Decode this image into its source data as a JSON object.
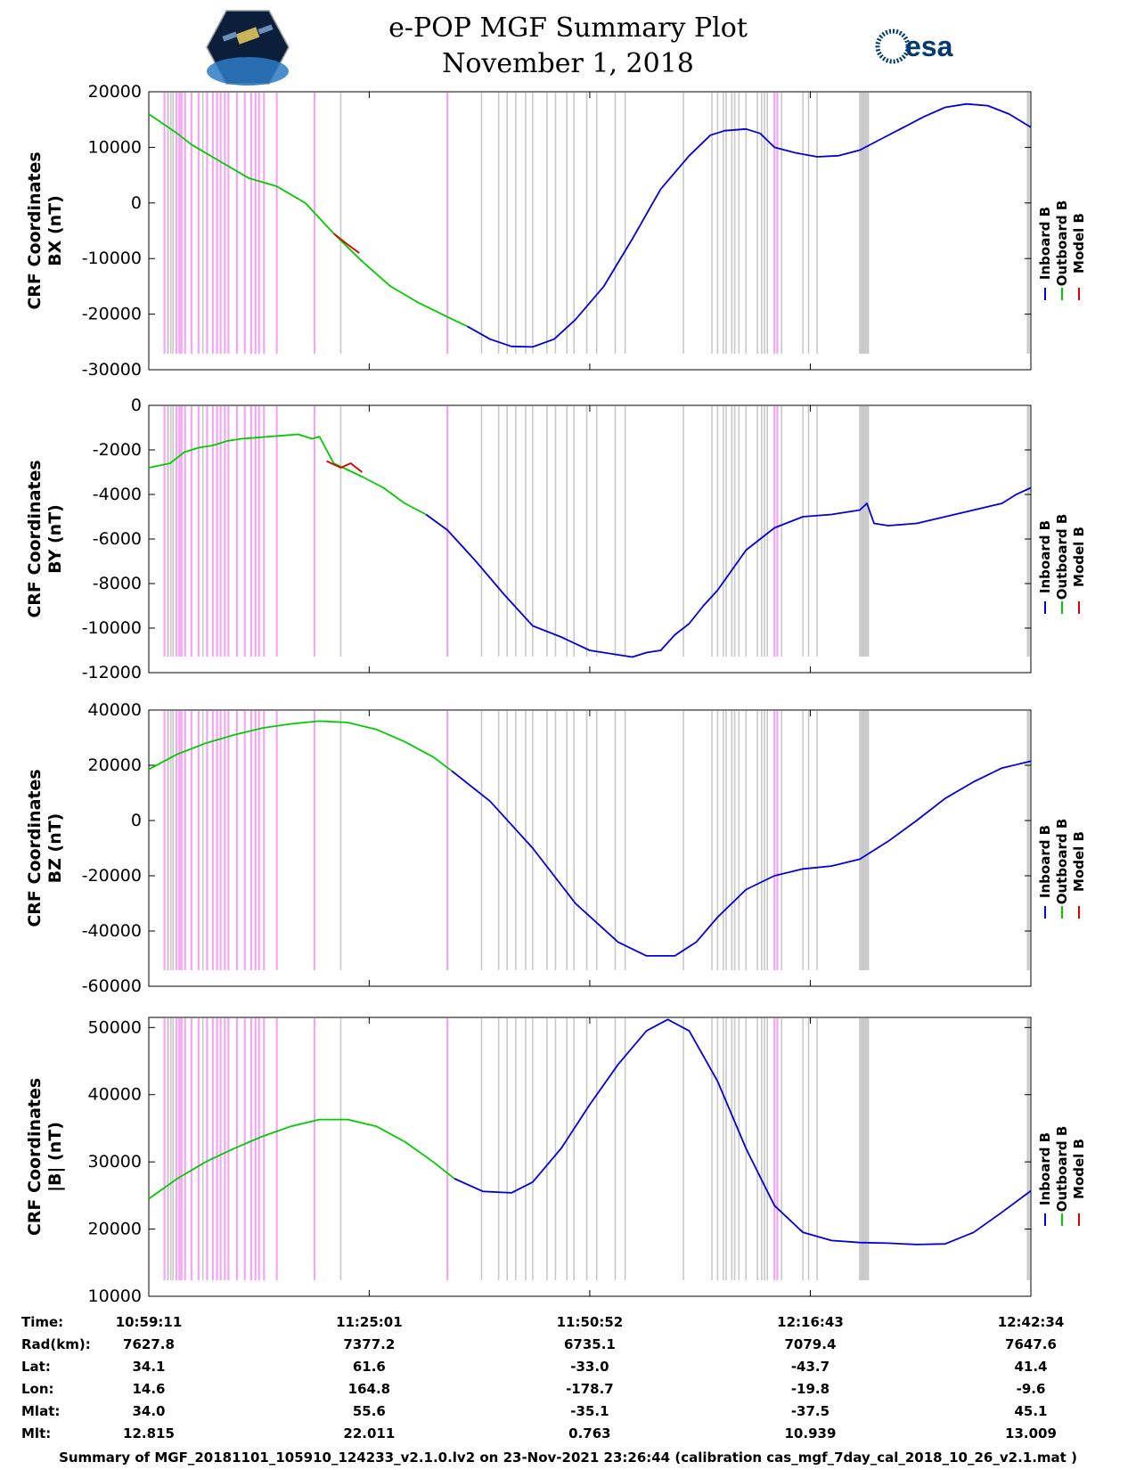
{
  "header": {
    "title_line1": "e-POP MGF Summary Plot",
    "title_line2": "November 1, 2018",
    "logo_left_name": "cassiope-logo",
    "logo_right_text": "esa"
  },
  "legend": {
    "labels": [
      "Inboard B",
      "Outboard B",
      "Model B"
    ],
    "colors": [
      "#0000dd",
      "#00cc00",
      "#dd0000"
    ]
  },
  "colors": {
    "inboard": "#0000dd",
    "outboard": "#00cc00",
    "model": "#dd0000",
    "pink_band": "#f4a6f4",
    "gray_band": "#c8c8c8"
  },
  "chart_data": [
    {
      "type": "line",
      "name": "bx",
      "ylabel_line1": "CRF Coordinates",
      "ylabel_line2": "BX (nT)",
      "ylim": [
        -30000,
        20000
      ],
      "yticks": [
        20000,
        10000,
        0,
        -10000,
        -20000,
        -30000
      ],
      "xlim": [
        0,
        6203
      ],
      "series": [
        {
          "name": "Outboard B",
          "x": [
            0,
            200,
            300,
            500,
            700,
            900,
            1100,
            1300,
            1500,
            1700,
            1900,
            2100,
            2240
          ],
          "y": [
            16000,
            12500,
            10500,
            7500,
            4500,
            3000,
            0,
            -5500,
            -10500,
            -15000,
            -18000,
            -20500,
            -22200
          ]
        },
        {
          "name": "Inboard B",
          "x": [
            2240,
            2400,
            2550,
            2700,
            2850,
            3000,
            3200,
            3400,
            3600,
            3800,
            3950,
            4050,
            4200,
            4300,
            4400,
            4550,
            4700,
            4850,
            5000,
            5150,
            5300,
            5450,
            5600,
            5750,
            5900,
            6050,
            6203
          ],
          "y": [
            -22200,
            -24500,
            -25800,
            -25900,
            -24500,
            -21000,
            -15000,
            -6500,
            2500,
            8500,
            12200,
            13000,
            13300,
            12500,
            10000,
            9000,
            8300,
            8500,
            9500,
            11500,
            13500,
            15500,
            17200,
            17800,
            17500,
            16000,
            13600
          ]
        },
        {
          "name": "Model B",
          "x": [
            1300,
            1400,
            1480
          ],
          "y": [
            -5500,
            -7500,
            -9000
          ]
        }
      ]
    },
    {
      "type": "line",
      "name": "by",
      "ylabel_line1": "CRF Coordinates",
      "ylabel_line2": "BY (nT)",
      "ylim": [
        -12000,
        0
      ],
      "yticks": [
        0,
        -2000,
        -4000,
        -6000,
        -8000,
        -10000,
        -12000
      ],
      "xlim": [
        0,
        6203
      ],
      "series": [
        {
          "name": "Outboard B",
          "x": [
            0,
            150,
            250,
            350,
            450,
            550,
            650,
            750,
            850,
            950,
            1050,
            1150,
            1200,
            1300,
            1400,
            1500,
            1650,
            1800,
            1950
          ],
          "y": [
            -2800,
            -2600,
            -2100,
            -1900,
            -1800,
            -1600,
            -1500,
            -1450,
            -1400,
            -1350,
            -1300,
            -1500,
            -1400,
            -2600,
            -2900,
            -3200,
            -3700,
            -4400,
            -4900
          ]
        },
        {
          "name": "Inboard B",
          "x": [
            1950,
            2100,
            2300,
            2500,
            2700,
            2900,
            3100,
            3300,
            3400,
            3500,
            3600,
            3700,
            3800,
            3900,
            4000,
            4200,
            4400,
            4600,
            4800,
            5000,
            5050,
            5100,
            5200,
            5400,
            5600,
            5800,
            6000,
            6100,
            6203
          ],
          "y": [
            -4900,
            -5600,
            -7000,
            -8500,
            -9900,
            -10400,
            -11000,
            -11200,
            -11300,
            -11100,
            -11000,
            -10300,
            -9800,
            -9000,
            -8300,
            -6500,
            -5500,
            -5000,
            -4900,
            -4700,
            -4400,
            -5300,
            -5400,
            -5300,
            -5000,
            -4700,
            -4400,
            -4000,
            -3700
          ]
        },
        {
          "name": "Model B",
          "x": [
            1250,
            1350,
            1420,
            1500
          ],
          "y": [
            -2500,
            -2800,
            -2600,
            -3000
          ]
        }
      ]
    },
    {
      "type": "line",
      "name": "bz",
      "ylabel_line1": "CRF Coordinates",
      "ylabel_line2": "BZ (nT)",
      "ylim": [
        -60000,
        40000
      ],
      "yticks": [
        40000,
        20000,
        0,
        -20000,
        -40000,
        -60000
      ],
      "xlim": [
        0,
        6203
      ],
      "series": [
        {
          "name": "Outboard B",
          "x": [
            0,
            200,
            400,
            600,
            800,
            1000,
            1200,
            1400,
            1600,
            1800,
            2000,
            2130
          ],
          "y": [
            18500,
            24000,
            28000,
            31000,
            33500,
            35000,
            36000,
            35500,
            33000,
            28500,
            23000,
            18000
          ]
        },
        {
          "name": "Inboard B",
          "x": [
            2130,
            2400,
            2700,
            3000,
            3300,
            3500,
            3700,
            3850,
            4000,
            4200,
            4400,
            4600,
            4800,
            5000,
            5200,
            5400,
            5600,
            5800,
            6000,
            6203
          ],
          "y": [
            18000,
            7000,
            -10000,
            -30000,
            -44000,
            -49000,
            -49000,
            -44000,
            -35000,
            -25000,
            -20000,
            -17500,
            -16500,
            -14000,
            -7500,
            0,
            8000,
            14000,
            19000,
            21500
          ]
        }
      ]
    },
    {
      "type": "line",
      "name": "bmag",
      "ylabel_line1": "CRF Coordinates",
      "ylabel_line2": "|B| (nT)",
      "ylim": [
        10000,
        51500
      ],
      "yticks": [
        50000,
        40000,
        30000,
        20000,
        10000
      ],
      "xlim": [
        0,
        6203
      ],
      "series": [
        {
          "name": "Outboard B",
          "x": [
            0,
            200,
            400,
            600,
            800,
            1000,
            1200,
            1400,
            1600,
            1800,
            2000,
            2150
          ],
          "y": [
            24500,
            27500,
            30000,
            32000,
            33800,
            35300,
            36300,
            36300,
            35300,
            33000,
            30000,
            27500
          ]
        },
        {
          "name": "Inboard B",
          "x": [
            2150,
            2350,
            2550,
            2700,
            2900,
            3100,
            3300,
            3500,
            3650,
            3800,
            4000,
            4200,
            4400,
            4600,
            4800,
            5000,
            5200,
            5400,
            5600,
            5800,
            6000,
            6203
          ],
          "y": [
            27500,
            25600,
            25400,
            27000,
            32000,
            38500,
            44500,
            49500,
            51200,
            49500,
            42000,
            32000,
            23500,
            19500,
            18300,
            18000,
            17900,
            17700,
            17800,
            19500,
            22500,
            25700
          ]
        }
      ]
    }
  ],
  "event_bands": {
    "pink_x": [
      110,
      135,
      195,
      215,
      230,
      255,
      300,
      350,
      410,
      450,
      480,
      505,
      535,
      560,
      620,
      675,
      720,
      750,
      775,
      810,
      900,
      1165,
      2100,
      4400,
      4420
    ],
    "gray_x": [
      135,
      155,
      170,
      380,
      1350,
      2340,
      2460,
      2520,
      2580,
      2650,
      2700,
      2800,
      2860,
      2940,
      2990,
      3080,
      3150,
      3280,
      3350,
      3760,
      3960,
      4000,
      4040,
      4060,
      4100,
      4120,
      4150,
      4200,
      4280,
      4310,
      4330,
      4350,
      4450,
      4600,
      4640,
      4700,
      5000,
      5010,
      5020,
      5030,
      5040,
      5050,
      5060,
      6180,
      6190
    ]
  },
  "xaxis": {
    "tick_x": [
      0,
      1550,
      3101,
      4652,
      6203
    ],
    "rows": [
      {
        "label": "Time:",
        "values": [
          "10:59:11",
          "11:25:01",
          "11:50:52",
          "12:16:43",
          "12:42:34"
        ]
      },
      {
        "label": "Rad(km):",
        "values": [
          "7627.8",
          "7377.2",
          "6735.1",
          "7079.4",
          "7647.6"
        ]
      },
      {
        "label": "Lat:",
        "values": [
          "34.1",
          "61.6",
          "-33.0",
          "-43.7",
          "41.4"
        ]
      },
      {
        "label": "Lon:",
        "values": [
          "14.6",
          "164.8",
          "-178.7",
          "-19.8",
          "-9.6"
        ]
      },
      {
        "label": "Mlat:",
        "values": [
          "34.0",
          "55.6",
          "-35.1",
          "-37.5",
          "45.1"
        ]
      },
      {
        "label": "Mlt:",
        "values": [
          "12.815",
          "22.011",
          "0.763",
          "10.939",
          "13.009"
        ]
      }
    ]
  },
  "footer": {
    "summary": "Summary of MGF_20181101_105910_124233_v2.1.0.lv2 on 23-Nov-2021 23:26:44 (calibration cas_mgf_7day_cal_2018_10_26_v2.1.mat )"
  }
}
